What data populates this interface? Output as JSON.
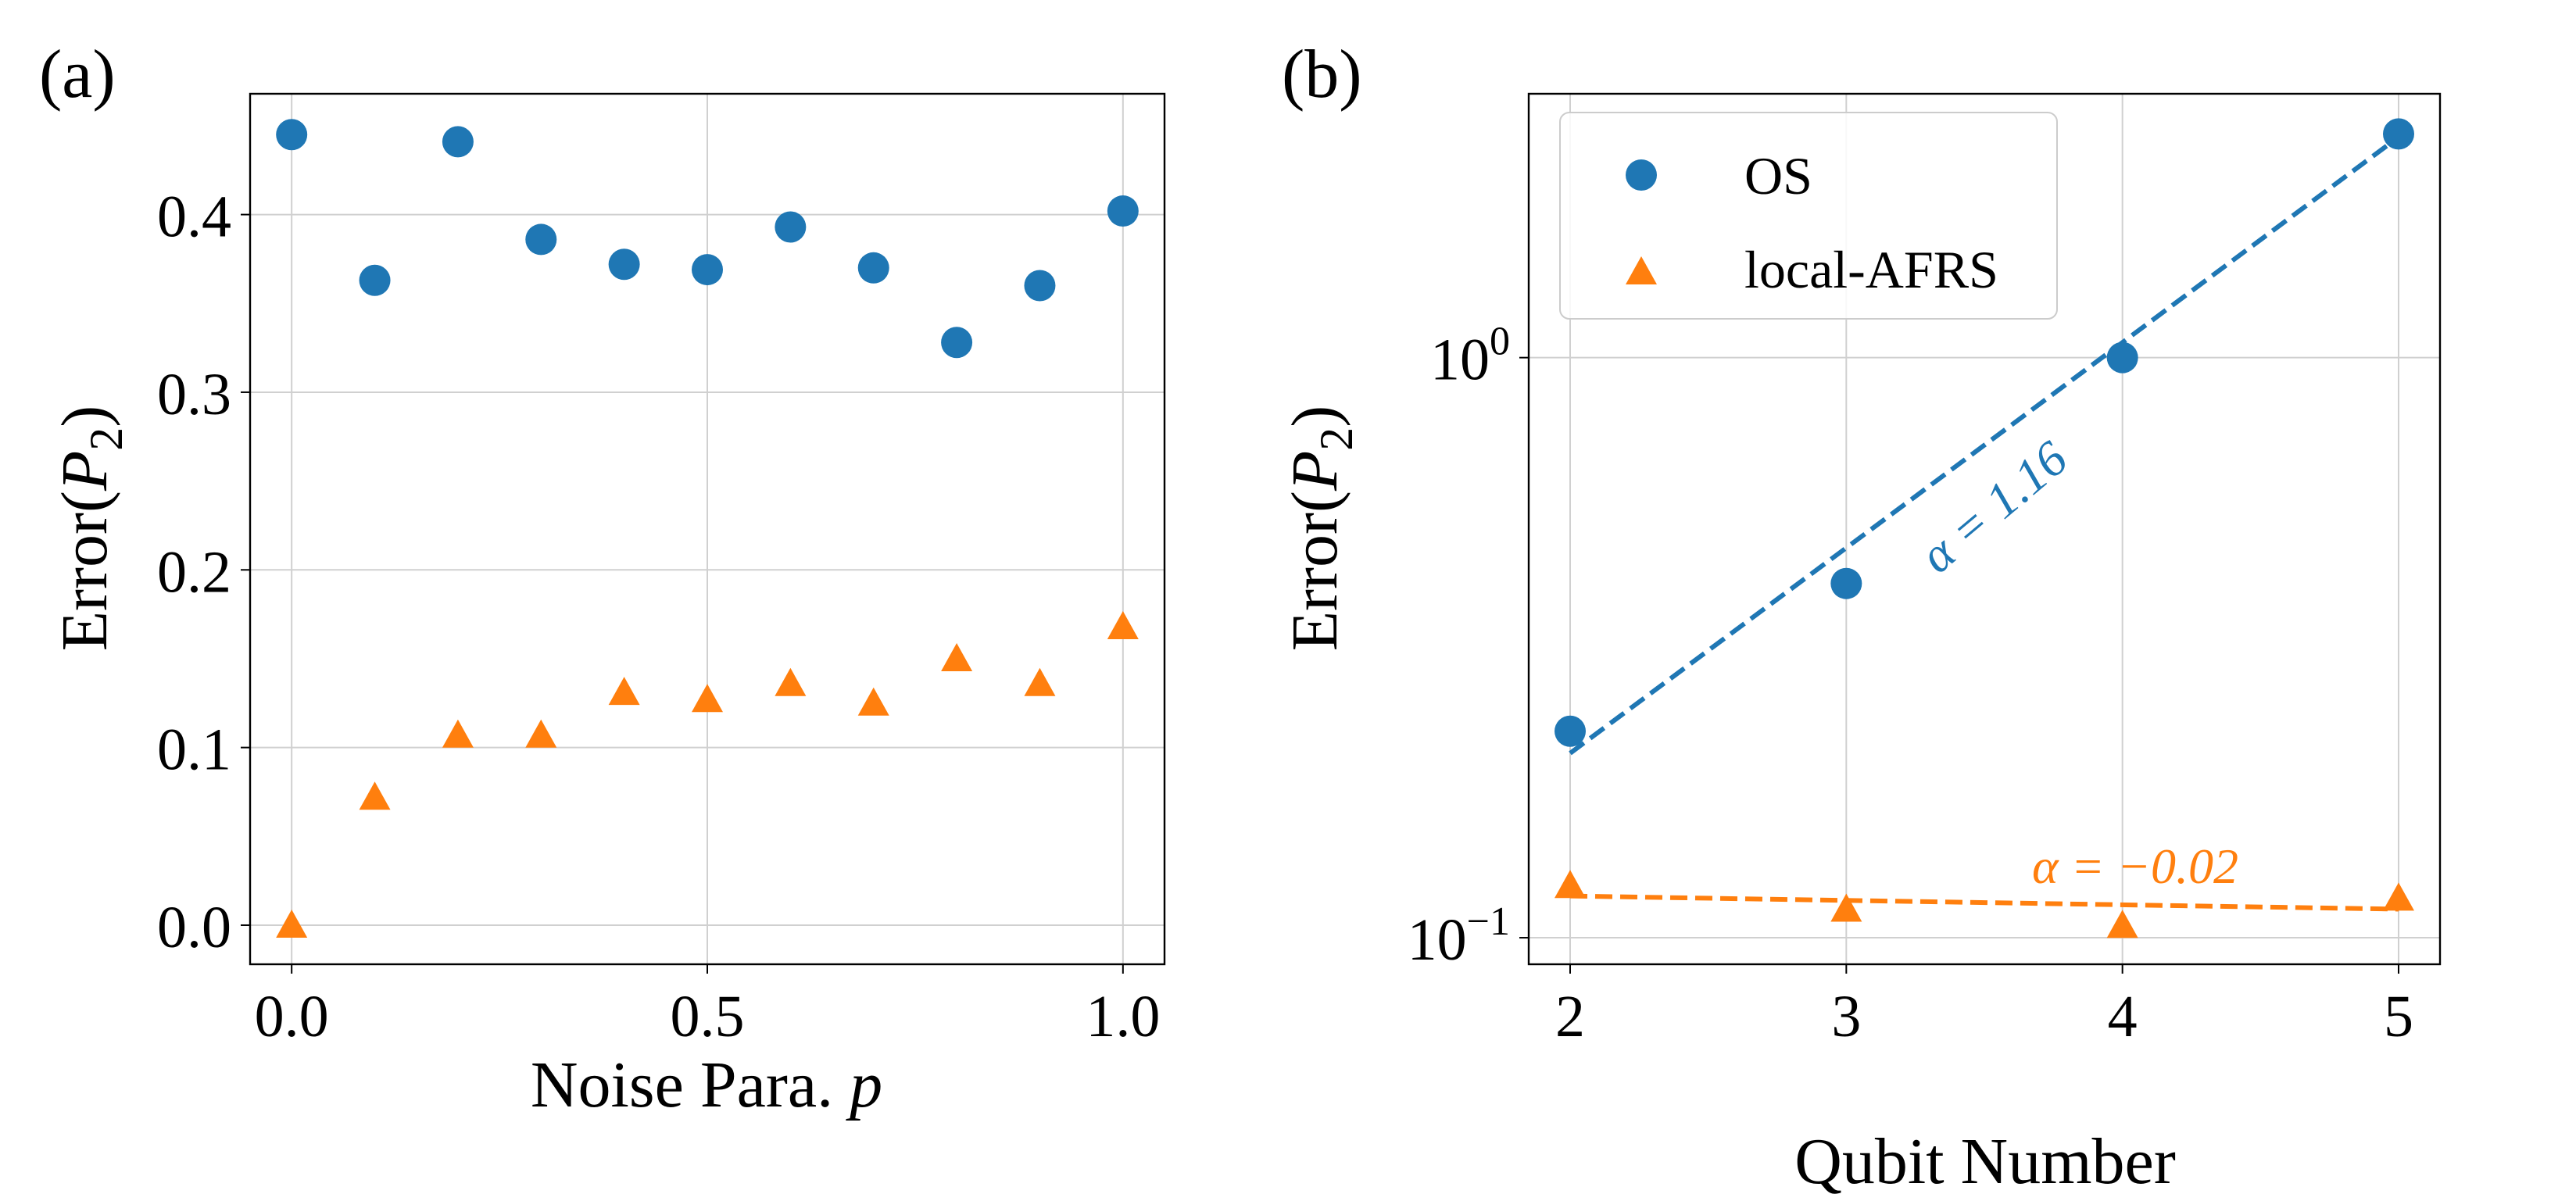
{
  "chart_data": [
    {
      "type": "scatter",
      "panel_label": "(a)",
      "xlabel": "Noise Para. p",
      "ylabel": "Error(P2)",
      "xlim": [
        -0.05,
        1.05
      ],
      "ylim": [
        -0.022,
        0.468
      ],
      "y_scale": "linear",
      "grid": true,
      "xticks": [
        0.0,
        0.5,
        1.0
      ],
      "xtick_labels": [
        "0.0",
        "0.5",
        "1.0"
      ],
      "yticks": [
        0.0,
        0.1,
        0.2,
        0.3,
        0.4
      ],
      "ytick_labels": [
        "0.0",
        "0.1",
        "0.2",
        "0.3",
        "0.4"
      ],
      "x": [
        0.0,
        0.1,
        0.2,
        0.3,
        0.4,
        0.5,
        0.6,
        0.7,
        0.8,
        0.9,
        1.0
      ],
      "series": [
        {
          "marker": "circle",
          "color": "#1f77b4",
          "values": [
            0.445,
            0.363,
            0.441,
            0.386,
            0.372,
            0.369,
            0.393,
            0.37,
            0.328,
            0.36,
            0.402
          ]
        },
        {
          "marker": "triangle",
          "color": "#ff7f0e",
          "values": [
            0.0,
            0.072,
            0.107,
            0.107,
            0.131,
            0.127,
            0.136,
            0.125,
            0.15,
            0.136,
            0.168
          ]
        }
      ]
    },
    {
      "type": "scatter",
      "panel_label": "(b)",
      "xlabel": "Qubit Number",
      "ylabel": "Error(P2)",
      "xlim": [
        1.85,
        5.15
      ],
      "ylim": [
        0.09,
        2.85
      ],
      "y_scale": "log",
      "grid": true,
      "legend": "top-left",
      "xticks": [
        2,
        3,
        4,
        5
      ],
      "xtick_labels": [
        "2",
        "3",
        "4",
        "5"
      ],
      "yticks": [
        0.1,
        1.0
      ],
      "ytick_labels": [
        {
          "base": "10",
          "exp": "−1"
        },
        {
          "base": "10",
          "exp": "0"
        }
      ],
      "x": [
        2,
        3,
        4,
        5
      ],
      "series": [
        {
          "name": "OS",
          "marker": "circle",
          "color": "#1f77b4",
          "values": [
            0.227,
            0.408,
            1.0,
            2.43
          ],
          "fit": {
            "x": [
              2,
              5
            ],
            "y": [
              0.208,
              2.4
            ],
            "label": "α = 1.16"
          }
        },
        {
          "name": "local-AFRS",
          "marker": "triangle",
          "color": "#ff7f0e",
          "values": [
            0.123,
            0.112,
            0.105,
            0.117
          ],
          "fit": {
            "x": [
              2,
              5
            ],
            "y": [
              0.118,
              0.112
            ],
            "label": "α = −0.02"
          }
        }
      ]
    }
  ]
}
